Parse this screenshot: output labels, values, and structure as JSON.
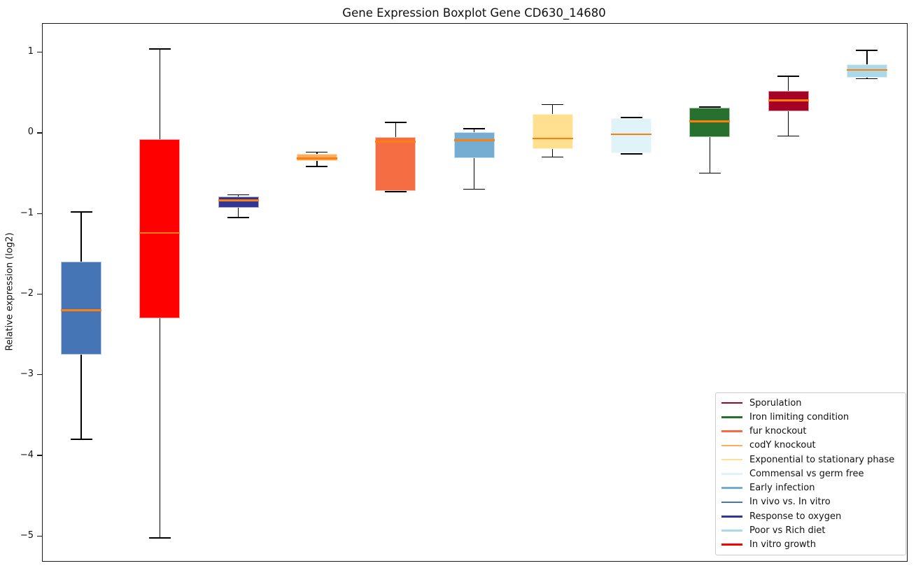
{
  "title": "Gene Expression Boxplot Gene CD630_14680",
  "axes": {
    "ylabel": "Relative expression (log2)"
  },
  "chart_data": {
    "type": "boxplot",
    "title": "Gene Expression Boxplot Gene CD630_14680",
    "xlabel": "",
    "ylabel": "Relative expression (log2)",
    "ylim": [
      -5.3,
      1.36
    ],
    "yticks": [
      1,
      0,
      -1,
      -2,
      -3,
      -4,
      -5
    ],
    "grid": false,
    "legend_position": "lower right",
    "median_color": "#ff7f0e",
    "whisker_color": "#000000",
    "series": [
      {
        "condition": "In vivo vs. In vitro",
        "color": "#4575b4",
        "whisker_low": -3.8,
        "q1": -2.75,
        "median": -2.2,
        "q3": -1.6,
        "whisker_high": -0.98
      },
      {
        "condition": "In vitro growth",
        "color": "#ff0000",
        "whisker_low": -5.02,
        "q1": -2.3,
        "median": -1.24,
        "q3": -0.08,
        "whisker_high": 1.04
      },
      {
        "condition": "Response to oxygen",
        "color": "#313695",
        "whisker_low": -1.05,
        "q1": -0.93,
        "median": -0.84,
        "q3": -0.79,
        "whisker_high": -0.77
      },
      {
        "condition": "codY knockout",
        "color": "#fdae61",
        "whisker_low": -0.42,
        "q1": -0.35,
        "median": -0.32,
        "q3": -0.26,
        "whisker_high": -0.24
      },
      {
        "condition": "fur knockout",
        "color": "#f46d43",
        "whisker_low": -0.73,
        "q1": -0.72,
        "median": -0.11,
        "q3": -0.05,
        "whisker_high": 0.13
      },
      {
        "condition": "Early infection",
        "color": "#74add1",
        "whisker_low": -0.7,
        "q1": -0.31,
        "median": -0.09,
        "q3": 0.01,
        "whisker_high": 0.05
      },
      {
        "condition": "Exponential to stationary phase",
        "color": "#fee090",
        "whisker_low": -0.3,
        "q1": -0.2,
        "median": -0.07,
        "q3": 0.23,
        "whisker_high": 0.35
      },
      {
        "condition": "Commensal vs germ free",
        "color": "#e0f3f8",
        "whisker_low": -0.26,
        "q1": -0.25,
        "median": -0.02,
        "q3": 0.18,
        "whisker_high": 0.19
      },
      {
        "condition": "Iron limiting condition",
        "color": "#28702e",
        "whisker_low": -0.5,
        "q1": -0.05,
        "median": 0.14,
        "q3": 0.31,
        "whisker_high": 0.32
      },
      {
        "condition": "Sporulation",
        "color": "#a50026",
        "whisker_low": -0.04,
        "q1": 0.27,
        "median": 0.4,
        "q3": 0.52,
        "whisker_high": 0.7
      },
      {
        "condition": "Poor vs Rich diet",
        "color": "#abd9e9",
        "whisker_low": 0.67,
        "q1": 0.68,
        "median": 0.78,
        "q3": 0.85,
        "whisker_high": 1.02
      }
    ]
  },
  "legend": {
    "entries": [
      {
        "label": "Sporulation",
        "color": "#a50026"
      },
      {
        "label": "Iron limiting condition",
        "color": "#28702e"
      },
      {
        "label": "fur knockout",
        "color": "#f46d43"
      },
      {
        "label": "codY knockout",
        "color": "#fdae61"
      },
      {
        "label": "Exponential to stationary phase",
        "color": "#fee090"
      },
      {
        "label": "Commensal vs germ free",
        "color": "#e0f3f8"
      },
      {
        "label": "Early infection",
        "color": "#74add1"
      },
      {
        "label": "In vivo vs. In vitro",
        "color": "#4575b4"
      },
      {
        "label": "Response to oxygen",
        "color": "#313695"
      },
      {
        "label": "Poor vs Rich diet",
        "color": "#abd9e9"
      },
      {
        "label": "In vitro growth",
        "color": "#ff0000"
      }
    ]
  }
}
